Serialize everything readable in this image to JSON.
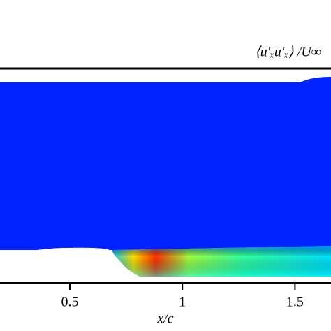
{
  "chart_data": {
    "type": "contour",
    "title": "⟨u′ₓu′ₓ⟩ /U∞",
    "x_label": "x/c",
    "xlim": [
      0.19,
      1.66
    ],
    "xticks": [
      0.5,
      1,
      1.5
    ]
  }
}
